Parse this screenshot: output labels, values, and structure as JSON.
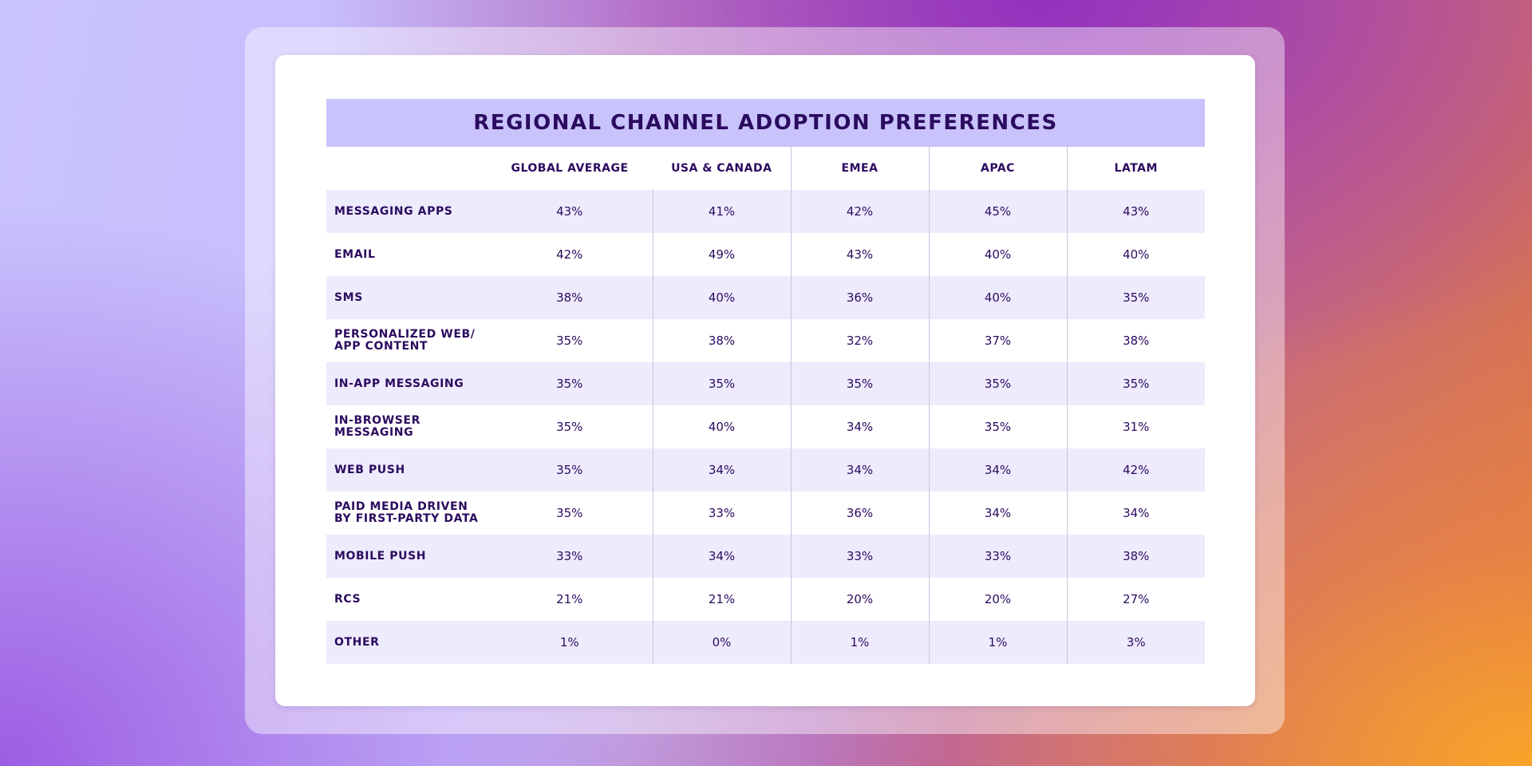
{
  "title": "REGIONAL CHANNEL ADOPTION PREFERENCES",
  "table": {
    "columns": [
      "GLOBAL AVERAGE",
      "USA & CANADA",
      "EMEA",
      "APAC",
      "LATAM"
    ],
    "rows": [
      {
        "label": "MESSAGING APPS",
        "cells": [
          "43%",
          "41%",
          "42%",
          "45%",
          "43%"
        ]
      },
      {
        "label": "EMAIL",
        "cells": [
          "42%",
          "49%",
          "43%",
          "40%",
          "40%"
        ]
      },
      {
        "label": "SMS",
        "cells": [
          "38%",
          "40%",
          "36%",
          "40%",
          "35%"
        ]
      },
      {
        "label": "PERSONALIZED WEB/ APP CONTENT",
        "cells": [
          "35%",
          "38%",
          "32%",
          "37%",
          "38%"
        ]
      },
      {
        "label": "IN-APP MESSAGING",
        "cells": [
          "35%",
          "35%",
          "35%",
          "35%",
          "35%"
        ]
      },
      {
        "label": "IN-BROWSER MESSAGING",
        "cells": [
          "35%",
          "40%",
          "34%",
          "35%",
          "31%"
        ]
      },
      {
        "label": "WEB PUSH",
        "cells": [
          "35%",
          "34%",
          "34%",
          "34%",
          "42%"
        ]
      },
      {
        "label": "PAID MEDIA DRIVEN BY FIRST-PARTY DATA",
        "cells": [
          "35%",
          "33%",
          "36%",
          "34%",
          "34%"
        ]
      },
      {
        "label": "MOBILE PUSH",
        "cells": [
          "33%",
          "34%",
          "33%",
          "33%",
          "38%"
        ]
      },
      {
        "label": "RCS",
        "cells": [
          "21%",
          "21%",
          "20%",
          "20%",
          "27%"
        ]
      },
      {
        "label": "OTHER",
        "cells": [
          "1%",
          "0%",
          "1%",
          "1%",
          "3%"
        ]
      }
    ]
  }
}
